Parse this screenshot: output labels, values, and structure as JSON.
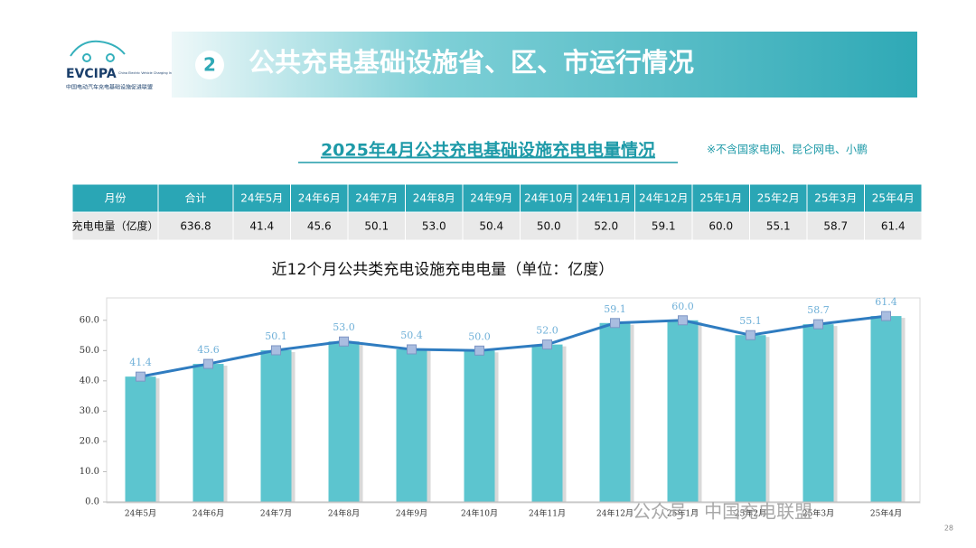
{
  "header": {
    "logo": "EVCIPA",
    "logo_en": "China Electric Vehicle Charging Infrastructure Promotion Alliance",
    "logo_cn": "中国电动汽车充电基础设施促进联盟",
    "number": "2",
    "title": "公共充电基础设施省、区、市运行情况"
  },
  "subtitle": "2025年4月公共充电基础设施充电电量情况",
  "note": "※不含国家电网、昆仑网电、小鹏",
  "table": {
    "header": [
      "月份",
      "合计",
      "24年5月",
      "24年6月",
      "24年7月",
      "24年8月",
      "24年9月",
      "24年10月",
      "24年11月",
      "24年12月",
      "25年1月",
      "25年2月",
      "25年3月",
      "25年4月"
    ],
    "rows": [
      [
        "充电电量（亿度）",
        "636.8",
        "41.4",
        "45.6",
        "50.1",
        "53.0",
        "50.4",
        "50.0",
        "52.0",
        "59.1",
        "60.0",
        "55.1",
        "58.7",
        "61.4"
      ]
    ]
  },
  "chart_data": {
    "type": "bar",
    "overlay_line": true,
    "title": "近12个月公共类充电设施充电电量（单位：亿度）",
    "categories": [
      "24年5月",
      "24年6月",
      "24年7月",
      "24年8月",
      "24年9月",
      "24年10月",
      "24年11月",
      "24年12月",
      "25年1月",
      "25年2月",
      "25年3月",
      "25年4月"
    ],
    "values": [
      41.4,
      45.6,
      50.1,
      53.0,
      50.4,
      50.0,
      52.0,
      59.1,
      60.0,
      55.1,
      58.7,
      61.4
    ],
    "value_labels": [
      "41.4",
      "45.6",
      "50.1",
      "53.0",
      "50.4",
      "50.0",
      "52.0",
      "59.1",
      "60.0",
      "55.1",
      "58.7",
      "61.4"
    ],
    "color": "#5cc5cf",
    "line_color": "#2f7cc0",
    "ylim": [
      0,
      65
    ],
    "yticks": [
      {
        "value": 0,
        "label": "0.0"
      },
      {
        "value": 10,
        "label": "10.0"
      },
      {
        "value": 20,
        "label": "20.0"
      },
      {
        "value": 30,
        "label": "30.0"
      },
      {
        "value": 40,
        "label": "40.0"
      },
      {
        "value": 50,
        "label": "50.0"
      },
      {
        "value": 60,
        "label": "60.0"
      }
    ]
  },
  "watermark": "公众号 · 中国充电联盟",
  "page_number": "28"
}
